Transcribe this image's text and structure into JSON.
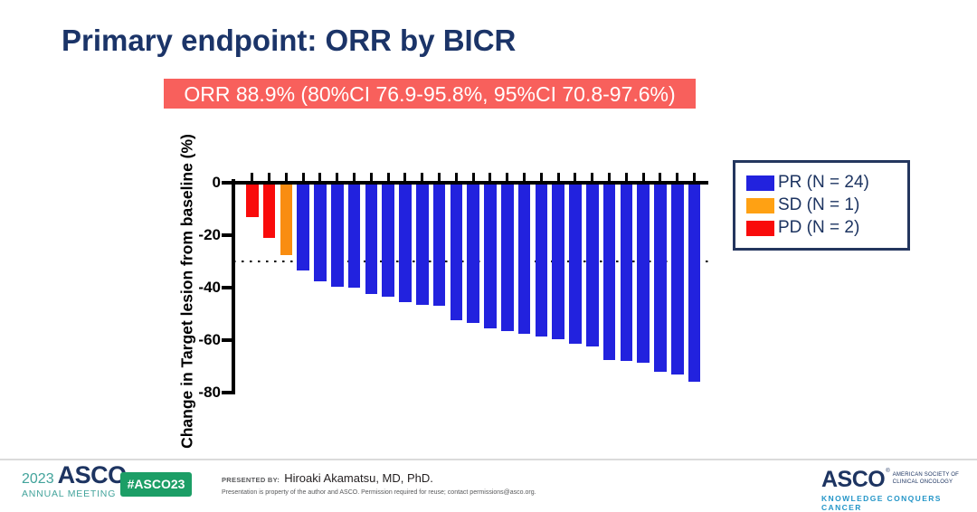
{
  "slide": {
    "title": "Primary endpoint: ORR by BICR",
    "banner": "ORR 88.9% (80%CI 76.9-95.8%, 95%CI 70.8-97.6%)"
  },
  "chart_data": {
    "type": "bar",
    "subtype": "waterfall",
    "title": "",
    "xlabel": "",
    "ylabel": "Change in Target lesion from baseline (%)",
    "ylim": [
      -80,
      0
    ],
    "yticks": [
      0,
      -20,
      -40,
      -60,
      -80
    ],
    "reference_line_y": -30,
    "grid": "off",
    "legend_position": "upper right",
    "values": [
      -13,
      -21,
      -27.5,
      -33.5,
      -37.5,
      -39.5,
      -40,
      -42.5,
      -43.5,
      -45.5,
      -46.5,
      -47,
      -52.5,
      -53.5,
      -55.5,
      -56.5,
      -57.5,
      -58.5,
      -59.5,
      -61.5,
      -62.5,
      -67.5,
      -68,
      -68.5,
      -72,
      -73,
      -76
    ],
    "groups": [
      "PD",
      "PD",
      "SD",
      "PR",
      "PR",
      "PR",
      "PR",
      "PR",
      "PR",
      "PR",
      "PR",
      "PR",
      "PR",
      "PR",
      "PR",
      "PR",
      "PR",
      "PR",
      "PR",
      "PR",
      "PR",
      "PR",
      "PR",
      "PR",
      "PR",
      "PR",
      "PR"
    ],
    "group_colors": {
      "PR": "#2222DE",
      "SD": "#F98D11",
      "PD": "#F90B0B"
    }
  },
  "legend": {
    "items": [
      {
        "label": "PR (N = 24)",
        "color": "#2222DE"
      },
      {
        "label": "SD (N = 1)",
        "color": "#FFA113"
      },
      {
        "label": "PD (N = 2)",
        "color": "#F90B0B"
      }
    ]
  },
  "colors": {
    "title_navy": "#1B3468",
    "banner_bg": "#F8605C",
    "banner_text": "#FFFFFF",
    "asco_navy": "#1D3461",
    "asco_teal": "#42A39B",
    "badge_green": "#1C9E66",
    "tagline_blue": "#2596C8"
  },
  "footer": {
    "meeting": {
      "year": "2023",
      "org": "ASCO",
      "reg": "®",
      "sub": "ANNUAL MEETING"
    },
    "hashtag": "#ASCO23",
    "presented_by_label": "PRESENTED BY:",
    "presenter": "Hiroaki Akamatsu, MD, PhD.",
    "disclaimer": "Presentation is property of the author and ASCO. Permission required for reuse; contact permissions@asco.org.",
    "asco_logo": {
      "name": "ASCO",
      "reg": "®",
      "line1": "AMERICAN SOCIETY OF",
      "line2": "CLINICAL ONCOLOGY",
      "tagline": "KNOWLEDGE CONQUERS CANCER"
    }
  }
}
